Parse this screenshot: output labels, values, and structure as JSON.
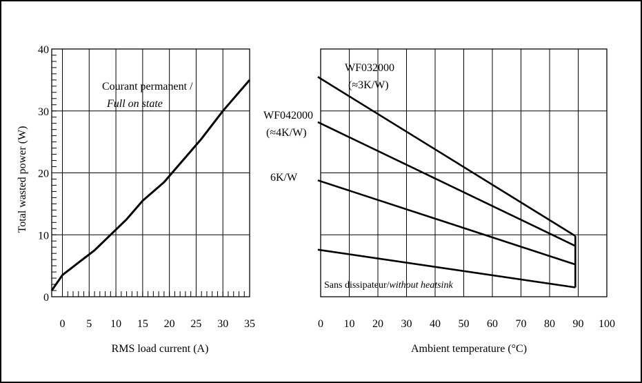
{
  "chart_data": [
    {
      "type": "line",
      "title": "",
      "ylabel": "Total wasted power (W)",
      "xlabel": "RMS load current (A)",
      "xlim": [
        -2,
        35
      ],
      "ylim": [
        0,
        40
      ],
      "x_ticks": [
        0,
        5,
        10,
        15,
        20,
        25,
        30,
        35
      ],
      "x_tick_labels": [
        "0",
        "5",
        "10",
        "15",
        "20",
        "25",
        "30",
        "35"
      ],
      "y_ticks": [
        0,
        10,
        20,
        30,
        40
      ],
      "y_tick_labels": [
        "0",
        "10",
        "20",
        "30",
        "40"
      ],
      "grid": true,
      "annotation": {
        "line1": "Courant permanent /",
        "line2": "Full on state"
      },
      "series": [
        {
          "name": "",
          "points": [
            [
              -2,
              1
            ],
            [
              0,
              3.5
            ],
            [
              3,
              5.5
            ],
            [
              6,
              7.5
            ],
            [
              9,
              10
            ],
            [
              12,
              12.5
            ],
            [
              15,
              15.5
            ],
            [
              19,
              18.5
            ],
            [
              22,
              21.5
            ],
            [
              26,
              25.5
            ],
            [
              30,
              30
            ],
            [
              35,
              35
            ]
          ]
        }
      ]
    },
    {
      "type": "line",
      "title": "",
      "ylabel": "",
      "xlabel": "Ambient temperature (°C)",
      "xlim": [
        0,
        100
      ],
      "x_ticks": [
        0,
        10,
        20,
        30,
        40,
        50,
        60,
        70,
        80,
        90,
        100
      ],
      "x_tick_labels": [
        "0",
        "10",
        "20",
        "30",
        "40",
        "50",
        "60",
        "70",
        "80",
        "90",
        "100"
      ],
      "grid": true,
      "series": [
        {
          "name": "",
          "label_line1": "WF032000",
          "label_line2": "(≈3K/W)",
          "points": [
            [
              -1,
              35.5
            ],
            [
              89,
              9.8
            ]
          ]
        },
        {
          "name": "",
          "label_line1": "WF042000",
          "label_line2": "(≈4K/W)",
          "points": [
            [
              -1,
              28.2
            ],
            [
              89,
              8.2
            ]
          ]
        },
        {
          "name": "",
          "label_line1": "6K/W",
          "points": [
            [
              -1,
              18.8
            ],
            [
              89,
              5.2
            ]
          ]
        },
        {
          "name": "",
          "label_regular": "Sans dissipateur/",
          "label_italic": "without heatsink",
          "points": [
            [
              -1,
              7.6
            ],
            [
              89,
              1.5
            ]
          ]
        }
      ]
    }
  ]
}
